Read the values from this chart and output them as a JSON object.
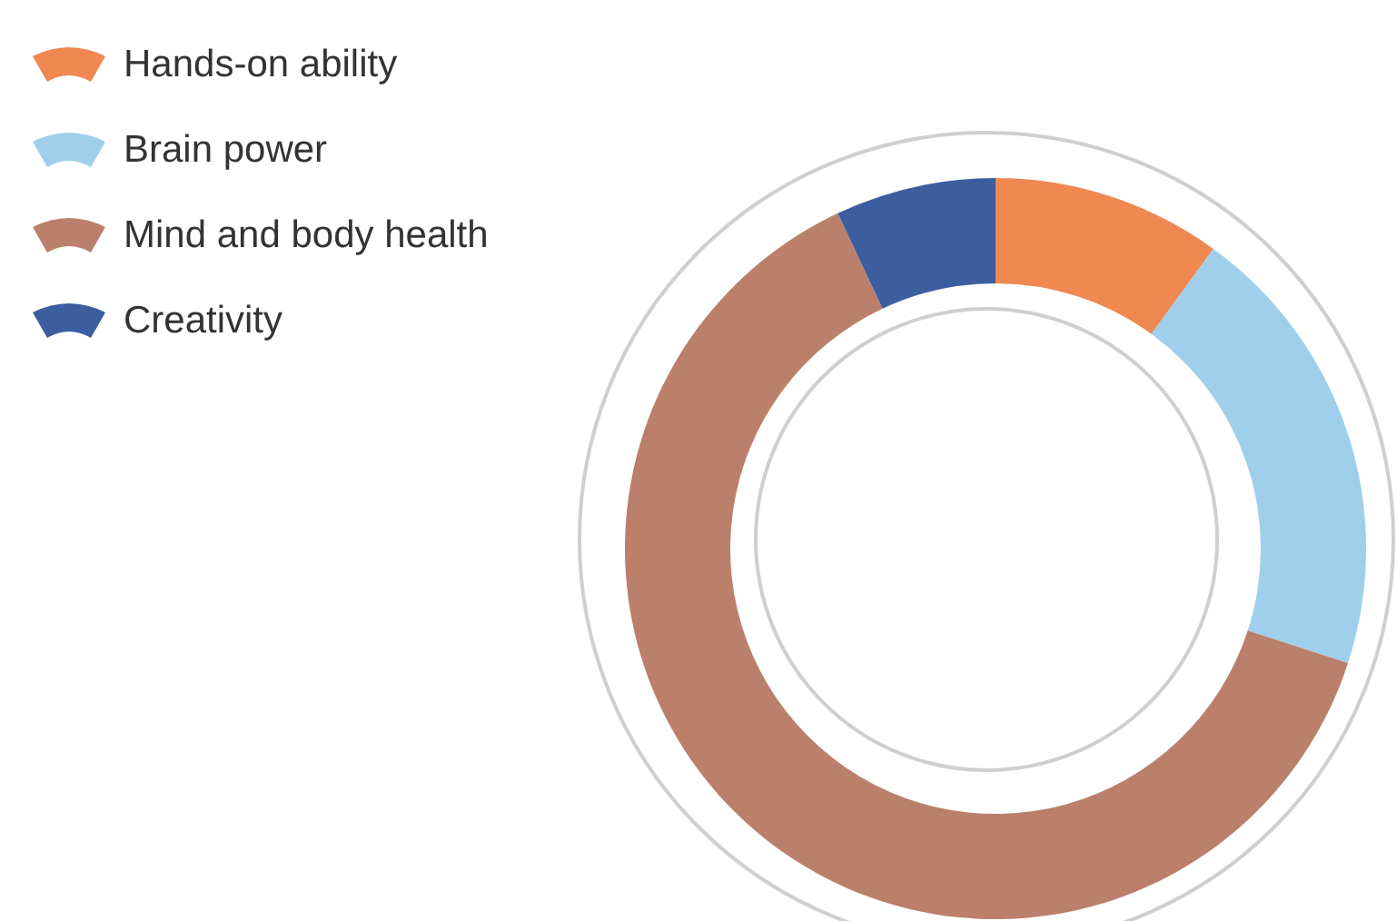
{
  "chart_data": {
    "type": "donut",
    "categories": [
      "Hands-on ability",
      "Brain power",
      "Mind and body health",
      "Creativity"
    ],
    "values": [
      10,
      20,
      63,
      7
    ],
    "colors": [
      "#ef8851",
      "#9fcfea",
      "#bb806b",
      "#3c5e9f"
    ],
    "legend": "top left"
  }
}
